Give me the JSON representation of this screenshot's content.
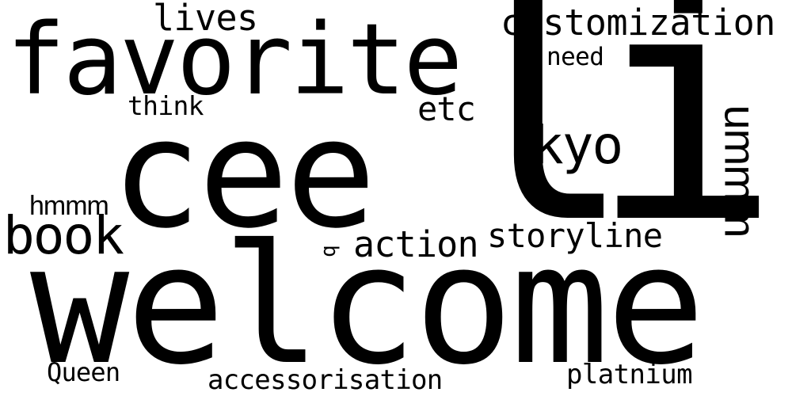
{
  "words": [
    {
      "key": "welcome",
      "text": "welcome"
    },
    {
      "key": "cee",
      "text": "cee"
    },
    {
      "key": "li",
      "text": "li"
    },
    {
      "key": "favorite",
      "text": "favorite"
    },
    {
      "key": "book",
      "text": "book"
    },
    {
      "key": "kyo",
      "text": "kyo"
    },
    {
      "key": "customization",
      "text": "customization"
    },
    {
      "key": "lives",
      "text": "lives"
    },
    {
      "key": "storyline",
      "text": "storyline"
    },
    {
      "key": "action",
      "text": "action"
    },
    {
      "key": "ummm",
      "text": "ummm"
    },
    {
      "key": "etc",
      "text": "etc"
    },
    {
      "key": "think",
      "text": "think"
    },
    {
      "key": "need",
      "text": "need"
    },
    {
      "key": "hmmm",
      "text": "hmmm"
    },
    {
      "key": "b",
      "text": "b"
    },
    {
      "key": "queen",
      "text": "Queen"
    },
    {
      "key": "accessorisation",
      "text": "accessorisation"
    },
    {
      "key": "platnium",
      "text": "platnium"
    }
  ],
  "colors": {
    "background": "#ffffff",
    "text": "#000000"
  }
}
